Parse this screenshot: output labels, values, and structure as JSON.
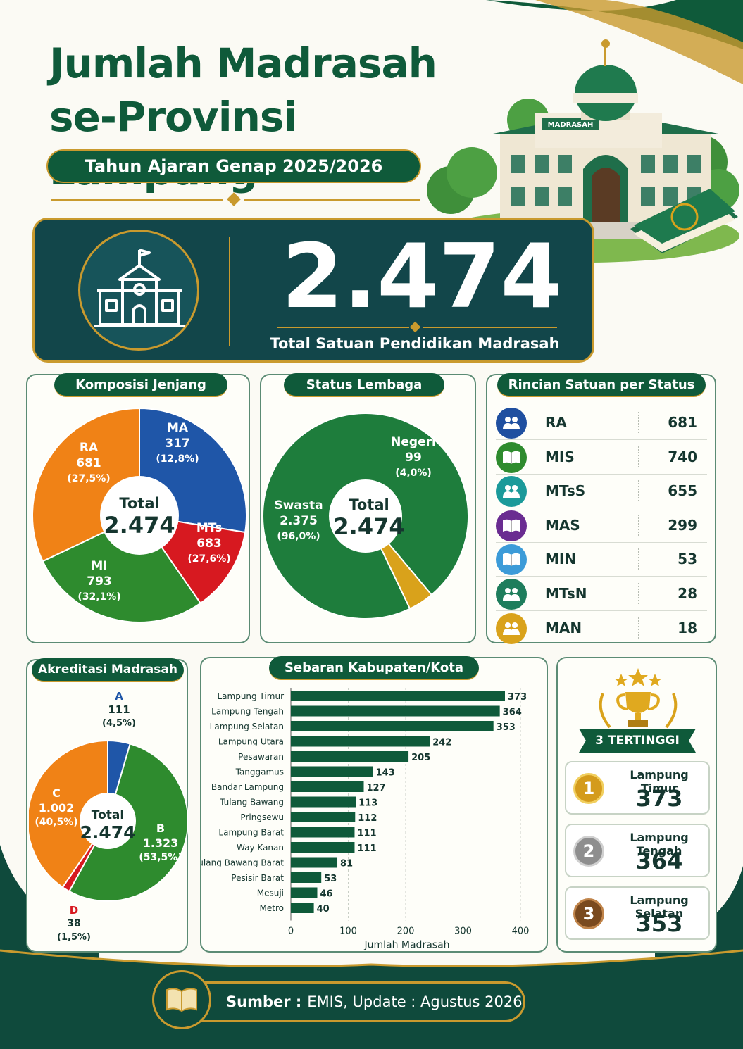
{
  "header": {
    "title_line1": "Jumlah Madrasah",
    "title_line2": "se-Provinsi Lampung",
    "subtitle": "Tahun Ajaran Genap 2025/2026",
    "building_sign": "MADRASAH"
  },
  "total": {
    "value": "2.474",
    "label": "Total Satuan Pendidikan Madrasah"
  },
  "colors": {
    "green": "#2e8b2e",
    "dark_green": "#0f5a3a",
    "teal": "#12464a",
    "red": "#d71920",
    "blue": "#1f56a8",
    "orange": "#f08216",
    "gold": "#d9a21b"
  },
  "komposisi": {
    "title": "Komposisi Jenjang",
    "center_label": "Total",
    "center_value": "2.474",
    "slices": [
      {
        "name": "RA",
        "value_text": "681",
        "pct": "(27,5%)",
        "color": "#1f56a8"
      },
      {
        "name": "MA",
        "value_text": "317",
        "pct": "(12,8%)",
        "color": "#d71920"
      },
      {
        "name": "MTs",
        "value_text": "683",
        "pct": "(27,6%)",
        "color": "#2e8b2e"
      },
      {
        "name": "MI",
        "value_text": "793",
        "pct": "(32,1%)",
        "color": "#f08216"
      }
    ]
  },
  "status_lembaga": {
    "title": "Status Lembaga",
    "center_label": "Total",
    "center_value": "2.474",
    "slices": [
      {
        "name": "Negeri",
        "value_text": "99",
        "pct": "(4,0%)",
        "color": "#d9a21b"
      },
      {
        "name": "Swasta",
        "value_text": "2.375",
        "pct": "(96,0%)",
        "color": "#1e7d3c"
      }
    ]
  },
  "rincian": {
    "title": "Rincian Satuan per Status",
    "rows": [
      {
        "name": "RA",
        "value": "681",
        "icon": "people-icon",
        "color": "#1f4fa0"
      },
      {
        "name": "MIS",
        "value": "740",
        "icon": "book-icon",
        "color": "#2e8b2e"
      },
      {
        "name": "MTsS",
        "value": "655",
        "icon": "people-icon",
        "color": "#1b9a9a"
      },
      {
        "name": "MAS",
        "value": "299",
        "icon": "book-icon",
        "color": "#6a2c91"
      },
      {
        "name": "MIN",
        "value": "53",
        "icon": "book-icon",
        "color": "#3c9bd8"
      },
      {
        "name": "MTsN",
        "value": "28",
        "icon": "people-icon",
        "color": "#1e7d5c"
      },
      {
        "name": "MAN",
        "value": "18",
        "icon": "people-icon",
        "color": "#d9a21b"
      }
    ]
  },
  "akreditasi": {
    "title": "Akreditasi Madrasah",
    "center_label": "Total",
    "center_value": "2.474",
    "slices": [
      {
        "name": "A",
        "value_text": "111",
        "pct": "(4,5%)",
        "color": "#1f56a8"
      },
      {
        "name": "B",
        "value_text": "1.323",
        "pct": "(53,5%)",
        "color": "#2e8b2e"
      },
      {
        "name": "D",
        "value_text": "38",
        "pct": "(1,5%)",
        "color": "#d71920"
      },
      {
        "name": "C",
        "value_text": "1.002",
        "pct": "(40,5%)",
        "color": "#f08216"
      }
    ]
  },
  "sebaran": {
    "title": "Sebaran Kabupaten/Kota",
    "xlabel": "Jumlah Madrasah"
  },
  "top3": {
    "title": "3 TERTINGGI",
    "items": [
      {
        "rank": "1",
        "name": "Lampung Timur",
        "value": "373"
      },
      {
        "rank": "2",
        "name": "Lampung Tengah",
        "value": "364"
      },
      {
        "rank": "3",
        "name": "Lampung Selatan",
        "value": "353"
      }
    ]
  },
  "footer": {
    "source_label": "Sumber :",
    "source_text": "EMIS, Update : Agustus 2026"
  },
  "chart_data": [
    {
      "type": "pie",
      "title": "Komposisi Jenjang",
      "categories": [
        "RA",
        "MA",
        "MTs",
        "MI"
      ],
      "values": [
        681,
        317,
        683,
        793
      ]
    },
    {
      "type": "pie",
      "title": "Status Lembaga",
      "categories": [
        "Negeri",
        "Swasta"
      ],
      "values": [
        99,
        2375
      ]
    },
    {
      "type": "table",
      "title": "Rincian Satuan per Status",
      "categories": [
        "RA",
        "MIS",
        "MTsS",
        "MAS",
        "MIN",
        "MTsN",
        "MAN"
      ],
      "values": [
        681,
        740,
        655,
        299,
        53,
        28,
        18
      ]
    },
    {
      "type": "pie",
      "title": "Akreditasi Madrasah",
      "categories": [
        "A",
        "B",
        "D",
        "C"
      ],
      "values": [
        111,
        1323,
        38,
        1002
      ]
    },
    {
      "type": "bar",
      "orientation": "horizontal",
      "title": "Sebaran Kabupaten/Kota",
      "xlabel": "Jumlah Madrasah",
      "xlim": [
        0,
        400
      ],
      "xticks": [
        0,
        100,
        200,
        300,
        400
      ],
      "categories": [
        "Lampung Timur",
        "Lampung Tengah",
        "Lampung Selatan",
        "Lampung Utara",
        "Pesawaran",
        "Tanggamus",
        "Bandar Lampung",
        "Tulang Bawang",
        "Pringsewu",
        "Lampung Barat",
        "Way Kanan",
        "Tulang Bawang Barat",
        "Pesisir Barat",
        "Mesuji",
        "Metro"
      ],
      "values": [
        373,
        364,
        353,
        242,
        205,
        143,
        127,
        113,
        112,
        111,
        111,
        81,
        53,
        46,
        40
      ],
      "bar_color": "#0f5a3a",
      "grid": true
    }
  ]
}
